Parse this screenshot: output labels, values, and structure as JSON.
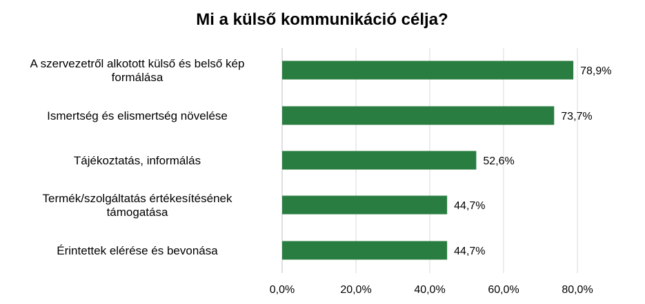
{
  "chart_data": {
    "type": "bar",
    "orientation": "horizontal",
    "title": "Mi a külső kommunikáció célja?",
    "xlabel": "",
    "ylabel": "",
    "categories": [
      [
        "A szervezetről alkotott külső és belső kép",
        "formálása"
      ],
      [
        "Ismertség és elismertség növelése"
      ],
      [
        "Tájékoztatás, informálás"
      ],
      [
        "Termék/szolgáltatás értékesítésének",
        "támogatása"
      ],
      [
        "Érintettek elérése és bevonása"
      ]
    ],
    "values": [
      78.9,
      73.7,
      52.6,
      44.7,
      44.7
    ],
    "value_labels": [
      "78,9%",
      "73,7%",
      "52,6%",
      "44,7%",
      "44,7%"
    ],
    "xlim": [
      0,
      80
    ],
    "ticks": [
      0,
      20,
      40,
      60,
      80
    ],
    "tick_labels": [
      "0,0%",
      "20,0%",
      "40,0%",
      "60,0%",
      "80,0%"
    ],
    "grid": true,
    "legend": "none",
    "colors": {
      "bar": "#2a7d40",
      "grid": "#d9d9d9",
      "axis": "#bfbfbf",
      "text": "#000000"
    }
  }
}
